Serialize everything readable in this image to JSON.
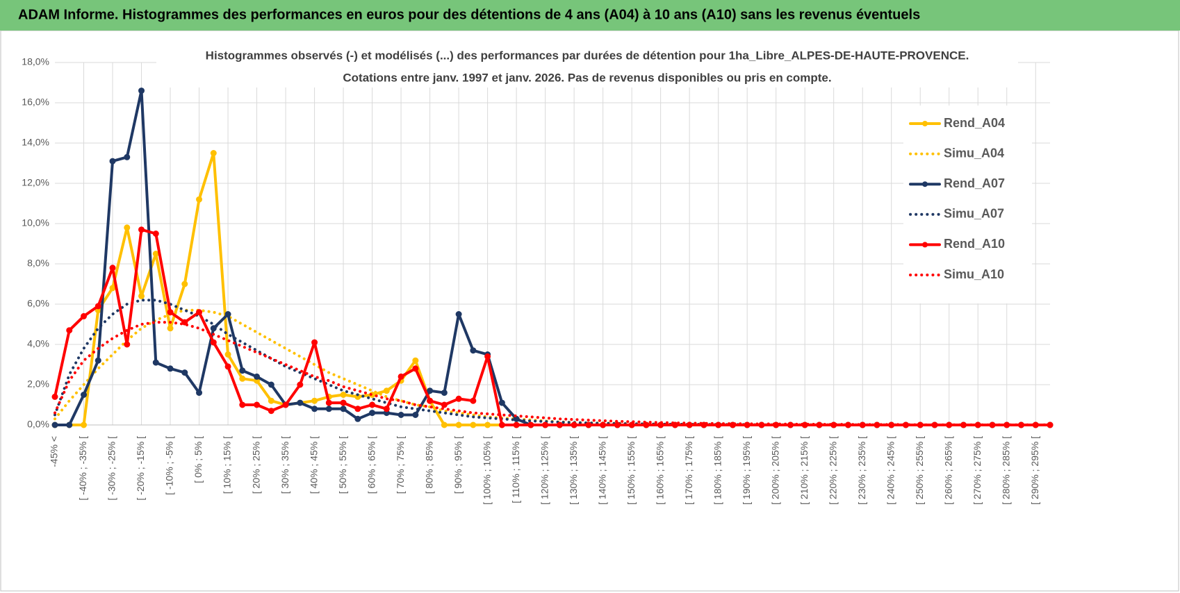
{
  "header": {
    "title": "ADAM Informe. Histogrammes des performances en euros pour des détentions de 4 ans (A04) à 10 ans (A10) sans les revenus éventuels"
  },
  "chart_data": {
    "type": "line",
    "title": "Histogrammes observés (-) et modélisés (...) des performances par durées de détention pour 1ha_Libre_ALPES-DE-HAUTE-PROVENCE.",
    "subtitle": "Cotations entre janv. 1997 et janv. 2026. Pas de revenus disponibles ou pris en compte.",
    "categories": [
      "-45% <",
      null,
      "[ -40% ; -35% [",
      null,
      "[ -30% ; -25% [",
      null,
      "[ -20% ; -15% [",
      null,
      "[ -10% ; -5% [",
      null,
      "[ 0% ; 5% [",
      null,
      "[ 10% ; 15% [",
      null,
      "[ 20% ; 25% [",
      null,
      "[ 30% ; 35% [",
      null,
      "[ 40% ; 45% [",
      null,
      "[ 50% ; 55% [",
      null,
      "[ 60% ; 65% [",
      null,
      "[ 70% ; 75% [",
      null,
      "[ 80% ; 85% [",
      null,
      "[ 90% ; 95% [",
      null,
      "[ 100% ; 105% [",
      null,
      "[ 110% ; 115% [",
      null,
      "[ 120% ; 125% [",
      null,
      "[ 130% ; 135% [",
      null,
      "[ 140% ; 145% [",
      null,
      "[ 150% ; 155% [",
      null,
      "[ 160% ; 165% [",
      null,
      "[ 170% ; 175% [",
      null,
      "[ 180% ; 185% [",
      null,
      "[ 190% ; 195% [",
      null,
      "[ 200% ; 205% [",
      null,
      "[ 210% ; 215% [",
      null,
      "[ 220% ; 225% [",
      null,
      "[ 230% ; 235% [",
      null,
      "[ 240% ; 245% [",
      null,
      "[ 250% ; 255% [",
      null,
      "[ 260% ; 265% [",
      null,
      "[ 270% ; 275% [",
      null,
      "[ 280% ; 285% [",
      null,
      "[ 290% ; 295% [",
      null
    ],
    "series": [
      {
        "name": "Rend_A04",
        "color": "#FFC000",
        "style": "solid",
        "marker": true,
        "values": [
          0,
          0,
          0,
          5.7,
          6.8,
          9.8,
          6.4,
          8.5,
          4.8,
          7.0,
          11.2,
          13.5,
          3.5,
          2.3,
          2.2,
          1.2,
          1.0,
          1.1,
          1.2,
          1.4,
          1.5,
          1.4,
          1.5,
          1.7,
          2.2,
          3.2,
          1.2,
          0,
          0,
          0,
          0,
          0,
          0,
          0,
          0,
          0,
          0,
          0,
          0,
          0,
          0,
          0,
          0,
          0,
          0,
          0,
          0,
          0,
          0,
          0,
          0,
          0,
          0,
          0,
          0,
          0,
          0,
          0,
          0,
          0,
          0,
          0,
          0,
          0,
          0,
          0,
          0,
          0,
          0,
          0
        ]
      },
      {
        "name": "Simu_A04",
        "color": "#FFC000",
        "style": "dotted",
        "marker": false,
        "values": [
          0.3,
          1.2,
          2.0,
          2.8,
          3.5,
          4.2,
          4.8,
          5.2,
          5.5,
          5.7,
          5.7,
          5.6,
          5.4,
          5.0,
          4.6,
          4.2,
          3.8,
          3.4,
          3.0,
          2.6,
          2.3,
          2.0,
          1.7,
          1.4,
          1.2,
          1.0,
          0.9,
          0.7,
          0.6,
          0.5,
          0.4,
          0.35,
          0.3,
          0.25,
          0.2,
          0.15,
          0.13,
          0.1,
          0.1,
          0.08,
          0.06,
          0.05,
          0.04,
          0.04,
          0.03,
          0.03,
          0.02,
          0.02,
          0.02,
          0.01,
          0.01,
          0.01,
          0.01,
          0.01,
          0.01,
          0.01,
          0,
          0,
          0,
          0,
          0,
          0,
          0,
          0,
          0,
          0,
          0,
          0,
          0,
          0
        ]
      },
      {
        "name": "Rend_A07",
        "color": "#1F3864",
        "style": "solid",
        "marker": true,
        "values": [
          0,
          0,
          1.5,
          3.2,
          13.1,
          13.3,
          16.6,
          3.1,
          2.8,
          2.6,
          1.6,
          4.8,
          5.5,
          2.7,
          2.4,
          2.0,
          1.0,
          1.1,
          0.8,
          0.8,
          0.8,
          0.3,
          0.6,
          0.6,
          0.5,
          0.5,
          1.7,
          1.6,
          5.5,
          3.7,
          3.5,
          1.1,
          0.3,
          0,
          0,
          0,
          0,
          0,
          0,
          0,
          0,
          0,
          0,
          0,
          0,
          0,
          0,
          0,
          0,
          0,
          0,
          0,
          0,
          0,
          0,
          0,
          0,
          0,
          0,
          0,
          0,
          0,
          0,
          0,
          0,
          0,
          0,
          0,
          0,
          0
        ]
      },
      {
        "name": "Simu_A07",
        "color": "#1F3864",
        "style": "dotted",
        "marker": false,
        "values": [
          0.5,
          2.5,
          3.8,
          4.8,
          5.5,
          6.0,
          6.2,
          6.2,
          6.0,
          5.7,
          5.4,
          5.0,
          4.5,
          4.1,
          3.7,
          3.3,
          2.9,
          2.6,
          2.3,
          2.0,
          1.7,
          1.5,
          1.3,
          1.1,
          0.9,
          0.8,
          0.7,
          0.6,
          0.5,
          0.4,
          0.35,
          0.3,
          0.25,
          0.2,
          0.17,
          0.14,
          0.12,
          0.1,
          0.08,
          0.07,
          0.06,
          0.05,
          0.04,
          0.04,
          0.03,
          0.03,
          0.02,
          0.02,
          0.02,
          0.01,
          0.01,
          0.01,
          0.01,
          0.01,
          0.01,
          0.01,
          0.01,
          0.01,
          0.01,
          0,
          0,
          0,
          0,
          0,
          0,
          0,
          0,
          0,
          0,
          0
        ]
      },
      {
        "name": "Rend_A10",
        "color": "#FF0000",
        "style": "solid",
        "marker": true,
        "values": [
          1.4,
          4.7,
          5.4,
          5.9,
          7.8,
          4.0,
          9.7,
          9.5,
          5.6,
          5.1,
          5.6,
          4.1,
          2.9,
          1.0,
          1.0,
          0.7,
          1.0,
          2.0,
          4.1,
          1.1,
          1.1,
          0.8,
          1.0,
          0.8,
          2.4,
          2.8,
          1.2,
          1.0,
          1.3,
          1.2,
          3.4,
          0,
          0,
          0,
          0,
          0,
          0,
          0,
          0,
          0,
          0,
          0,
          0,
          0,
          0,
          0,
          0,
          0,
          0,
          0,
          0,
          0,
          0,
          0,
          0,
          0,
          0,
          0,
          0,
          0,
          0,
          0,
          0,
          0,
          0,
          0,
          0,
          0,
          0,
          0
        ]
      },
      {
        "name": "Simu_A10",
        "color": "#FF0000",
        "style": "dotted",
        "marker": false,
        "values": [
          0.6,
          2.2,
          3.2,
          3.8,
          4.3,
          4.7,
          5.0,
          5.1,
          5.1,
          5.0,
          4.8,
          4.5,
          4.2,
          3.9,
          3.6,
          3.3,
          3.0,
          2.7,
          2.4,
          2.2,
          1.9,
          1.7,
          1.5,
          1.3,
          1.2,
          1.0,
          0.9,
          0.8,
          0.7,
          0.6,
          0.55,
          0.5,
          0.45,
          0.4,
          0.35,
          0.3,
          0.27,
          0.24,
          0.21,
          0.18,
          0.16,
          0.14,
          0.12,
          0.1,
          0.09,
          0.08,
          0.07,
          0.06,
          0.06,
          0.05,
          0.05,
          0.04,
          0.04,
          0.03,
          0.03,
          0.03,
          0.02,
          0.02,
          0.02,
          0.02,
          0.01,
          0.01,
          0.01,
          0.01,
          0.01,
          0.01,
          0.01,
          0.01,
          0.01,
          0.01
        ]
      }
    ],
    "ylim": [
      0,
      18
    ],
    "yticks": [
      {
        "value": 0,
        "label": "0,0%"
      },
      {
        "value": 2,
        "label": "2,0%"
      },
      {
        "value": 4,
        "label": "4,0%"
      },
      {
        "value": 6,
        "label": "6,0%"
      },
      {
        "value": 8,
        "label": "8,0%"
      },
      {
        "value": 10,
        "label": "10,0%"
      },
      {
        "value": 12,
        "label": "12,0%"
      },
      {
        "value": 14,
        "label": "14,0%"
      },
      {
        "value": 16,
        "label": "16,0%"
      },
      {
        "value": 18,
        "label": "18,0%"
      }
    ],
    "grid": true,
    "legend": "right"
  }
}
